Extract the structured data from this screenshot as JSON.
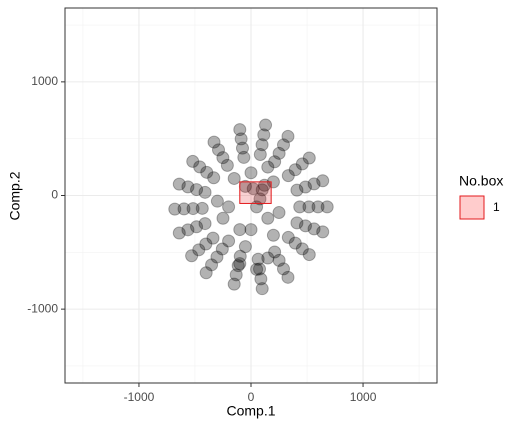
{
  "chart_data": {
    "type": "scatter",
    "x_label": "Comp.1",
    "y_label": "Comp.2",
    "xlim": [
      -1660,
      1660
    ],
    "ylim": [
      -1650,
      1650
    ],
    "xticks": [
      -1000,
      0,
      1000
    ],
    "yticks": [
      -1000,
      0,
      1000
    ],
    "x_minor_grid": [
      -1500,
      -500,
      500,
      1500
    ],
    "y_minor_grid": [
      -1500,
      -500,
      500,
      1500
    ],
    "grid": true,
    "color": "#000000",
    "point_opacity": 0.3,
    "x": [
      680,
      598,
      517,
      435,
      640,
      563,
      486,
      410,
      520,
      458,
      395,
      333,
      330,
      290,
      251,
      211,
      130,
      114,
      99,
      83,
      -100,
      -88,
      -76,
      -64,
      -330,
      -290,
      -251,
      -211,
      -520,
      -458,
      -395,
      -333,
      -640,
      -563,
      -486,
      -410,
      -680,
      -598,
      -517,
      -435,
      -640,
      -563,
      -486,
      -410,
      -530,
      -466,
      -403,
      -339,
      -400,
      -352,
      -304,
      -256,
      -150,
      -132,
      -114,
      -96,
      100,
      88,
      76,
      64,
      330,
      290,
      251,
      211,
      520,
      458,
      395,
      333,
      640,
      563,
      486,
      410,
      -200,
      -100,
      -50,
      150,
      200,
      -250,
      50,
      100,
      -50,
      200,
      -150,
      0,
      150,
      -200,
      250,
      -300,
      50,
      -100,
      150,
      0,
      20,
      120,
      80
    ],
    "values": [
      -100,
      -100,
      -100,
      -100,
      130,
      102,
      75,
      47,
      330,
      278,
      227,
      175,
      520,
      446,
      371,
      297,
      620,
      534,
      447,
      361,
      580,
      498,
      417,
      335,
      470,
      402,
      333,
      265,
      300,
      252,
      204,
      156,
      100,
      76,
      52,
      28,
      -120,
      -118,
      -115,
      -113,
      -330,
      -302,
      -275,
      -247,
      -530,
      -478,
      -427,
      -375,
      -680,
      -610,
      -541,
      -471,
      -780,
      -698,
      -617,
      -535,
      -820,
      -734,
      -647,
      -561,
      -720,
      -646,
      -571,
      -497,
      -520,
      -470,
      -419,
      -369,
      -320,
      -294,
      -267,
      -241,
      -100,
      -300,
      -450,
      -200,
      -350,
      -200,
      -100,
      50,
      80,
      120,
      150,
      200,
      250,
      -400,
      -150,
      -50,
      -650,
      -600,
      -550,
      -300,
      60,
      90,
      -30
    ],
    "box": {
      "xmin": -100,
      "xmax": 180,
      "ymin": -70,
      "ymax": 120,
      "color": "#e31a1c",
      "fill": "#ffcccc"
    },
    "legend": {
      "title": "No.box",
      "labels": [
        "1"
      ]
    }
  }
}
